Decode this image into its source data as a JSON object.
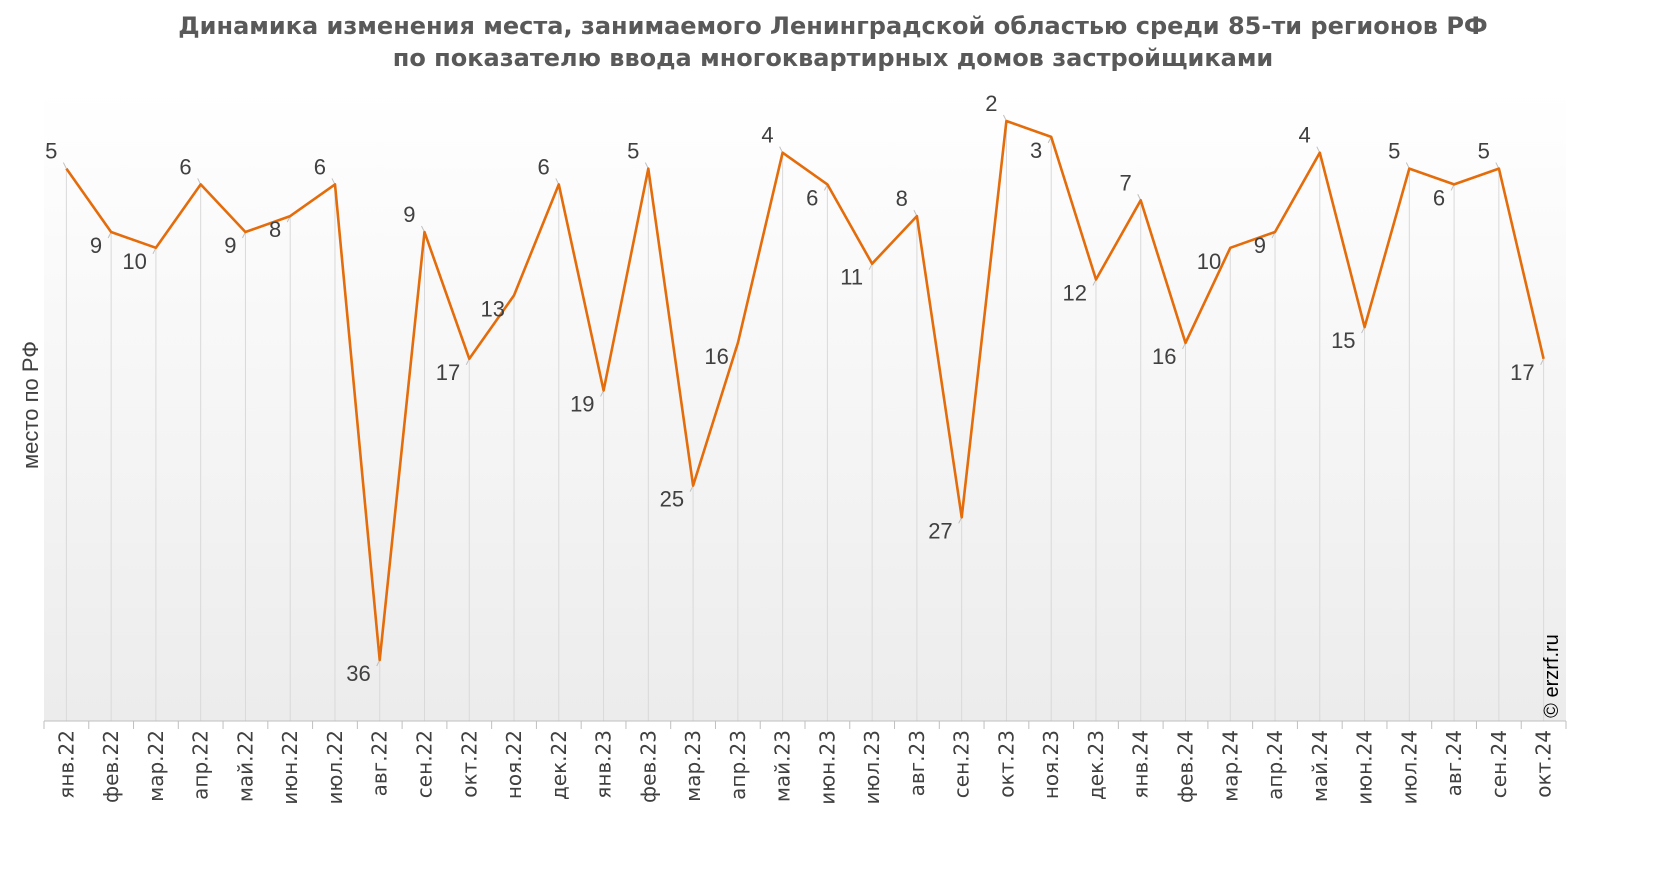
{
  "chart_data": {
    "type": "line",
    "title": "Динамика изменения места, занимаемого Ленинградской областью среди 85-ти регионов РФ",
    "subtitle": "по показателю ввода многоквартирных домов застройщиками",
    "xlabel": "",
    "ylabel": "место по РФ",
    "y_reversed": true,
    "ylim": [
      40,
      0
    ],
    "grid": "vertical",
    "legend": "none",
    "categories": [
      "янв.22",
      "фев.22",
      "мар.22",
      "апр.22",
      "май.22",
      "июн.22",
      "июл.22",
      "авг.22",
      "сен.22",
      "окт.22",
      "ноя.22",
      "дек.22",
      "янв.23",
      "фев.23",
      "мар.23",
      "апр.23",
      "май.23",
      "июн.23",
      "июл.23",
      "авг.23",
      "сен.23",
      "окт.23",
      "ноя.23",
      "дек.23",
      "янв.24",
      "фев.24",
      "мар.24",
      "апр.24",
      "май.24",
      "июн.24",
      "июл.24",
      "авг.24",
      "сен.24",
      "окт.24"
    ],
    "series": [
      {
        "values": [
          5,
          9,
          10,
          6,
          9,
          8,
          6,
          36,
          9,
          17,
          13,
          6,
          19,
          5,
          25,
          16,
          4,
          6,
          11,
          8,
          27,
          2,
          3,
          12,
          7,
          16,
          10,
          9,
          4,
          15,
          5,
          6,
          5,
          17
        ],
        "color": "#e46c0a"
      }
    ]
  },
  "watermark": "© erzrf.ru",
  "colors": {
    "line": "#e46c0a",
    "grid": "#d9d9d9",
    "text": "#404040",
    "title": "#595959",
    "plot_top": "#ffffff",
    "plot_bottom": "#ececec"
  }
}
